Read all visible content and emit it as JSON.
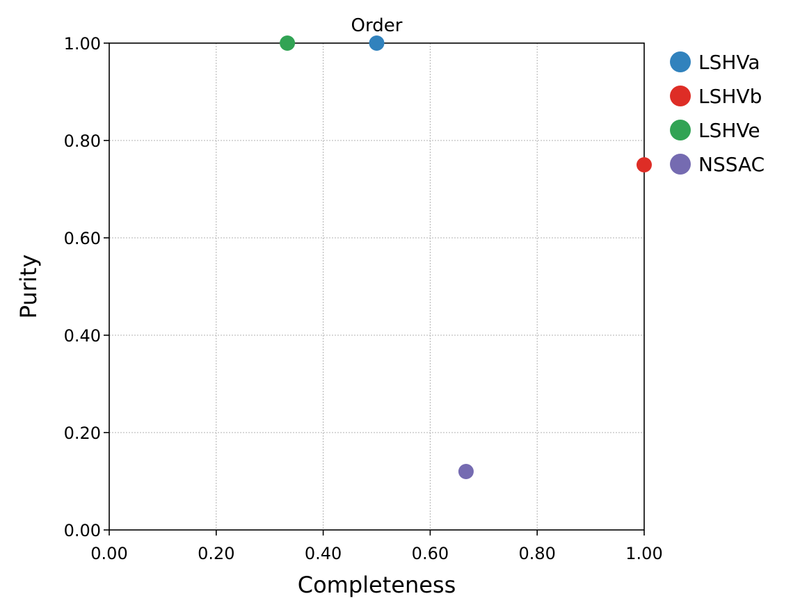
{
  "chart_data": {
    "type": "scatter",
    "title": "Order",
    "xlabel": "Completeness",
    "ylabel": "Purity",
    "xlim": [
      0,
      1
    ],
    "ylim": [
      0,
      1
    ],
    "xticks": [
      "0.00",
      "0.20",
      "0.40",
      "0.60",
      "0.80",
      "1.00"
    ],
    "yticks": [
      "0.00",
      "0.20",
      "0.40",
      "0.60",
      "0.80",
      "1.00"
    ],
    "xtick_values": [
      0,
      0.2,
      0.4,
      0.6,
      0.8,
      1.0
    ],
    "ytick_values": [
      0,
      0.2,
      0.4,
      0.6,
      0.8,
      1.0
    ],
    "grid": true,
    "legend_position": "outside-right-top",
    "series": [
      {
        "name": "LSHVa",
        "color": "#3182bd",
        "x": [
          0.5
        ],
        "y": [
          1.0
        ]
      },
      {
        "name": "LSHVb",
        "color": "#de2d26",
        "x": [
          1.0
        ],
        "y": [
          0.75
        ]
      },
      {
        "name": "LSHVe",
        "color": "#31a354",
        "x": [
          0.333
        ],
        "y": [
          1.0
        ]
      },
      {
        "name": "NSSAC",
        "color": "#756bb1",
        "x": [
          0.667
        ],
        "y": [
          0.12
        ]
      }
    ]
  }
}
